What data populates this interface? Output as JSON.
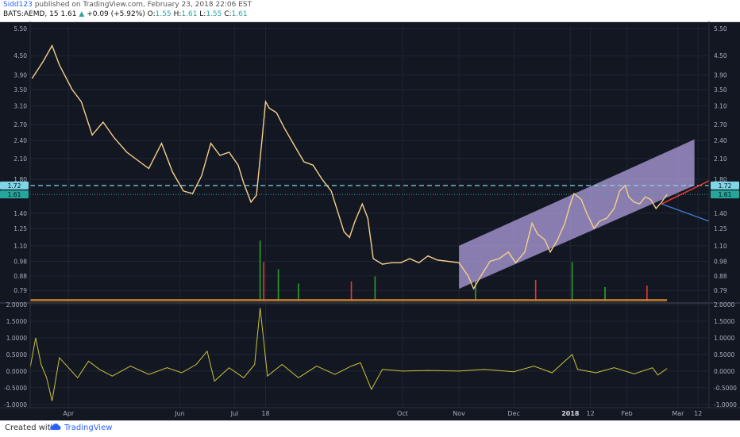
{
  "header": {
    "author": "Sidd123",
    "published_text": "published on TradingView.com, February 23, 2018 22:06 EST",
    "symbol": "BATS:AEMD, 15",
    "last": "1.61",
    "change": "+0.09 (+5.92%)",
    "o_label": "O:",
    "o_value": "1.55",
    "h_label": "H:",
    "h_value": "1.61",
    "l_label": "L:",
    "l_value": "1.55",
    "c_label": "C:",
    "c_value": "1.61"
  },
  "footer": {
    "created_with": "Created with",
    "brand": "TradingView"
  },
  "colors": {
    "background": "#131722",
    "price_line": "#f5d08a",
    "channel_fill": "#b7a5e6",
    "support_line": "#26a69a",
    "resistance_line": "#7ed6e6",
    "trend_red": "#e53935",
    "trend_blue": "#3d7fd8",
    "oscillator": "#c9c43a",
    "volume_up": "#2ca02c",
    "volume_down": "#e53935"
  },
  "icons": {
    "brand_logo": "tradingview-cloud-icon"
  },
  "chart_data": [
    {
      "type": "line",
      "name": "price",
      "y_scale": "log",
      "ylim": [
        0.72,
        5.6
      ],
      "y_ticks": [
        "5.50",
        "4.50",
        "3.90",
        "3.50",
        "3.10",
        "2.70",
        "2.40",
        "2.10",
        "1.80",
        "1.40",
        "1.25",
        "1.10",
        "0.98",
        "0.88",
        "0.79"
      ],
      "x_tick_labels": [
        "Apr",
        "Jun",
        "Jul",
        "18",
        "Oct",
        "Nov",
        "Dec",
        "2018",
        "12",
        "Feb",
        "Mar",
        "12"
      ],
      "x_tick_dates": [
        "2017-04-01",
        "2017-06-01",
        "2017-07-01",
        "2017-07-18",
        "2017-10-01",
        "2017-11-01",
        "2017-12-01",
        "2018-01-01",
        "2018-01-12",
        "2018-02-01",
        "2018-03-01",
        "2018-03-12"
      ],
      "x_range": [
        "2017-03-11",
        "2018-03-18"
      ],
      "points": [
        [
          "2017-03-12",
          3.8
        ],
        [
          "2017-03-18",
          4.3
        ],
        [
          "2017-03-23",
          4.85
        ],
        [
          "2017-03-27",
          4.2
        ],
        [
          "2017-04-03",
          3.5
        ],
        [
          "2017-04-08",
          3.2
        ],
        [
          "2017-04-14",
          2.5
        ],
        [
          "2017-04-20",
          2.75
        ],
        [
          "2017-04-26",
          2.45
        ],
        [
          "2017-05-03",
          2.2
        ],
        [
          "2017-05-10",
          2.05
        ],
        [
          "2017-05-15",
          1.95
        ],
        [
          "2017-05-22",
          2.35
        ],
        [
          "2017-05-28",
          1.9
        ],
        [
          "2017-06-03",
          1.65
        ],
        [
          "2017-06-08",
          1.62
        ],
        [
          "2017-06-13",
          1.85
        ],
        [
          "2017-06-18",
          2.35
        ],
        [
          "2017-06-23",
          2.15
        ],
        [
          "2017-06-28",
          2.2
        ],
        [
          "2017-07-03",
          2.0
        ],
        [
          "2017-07-06",
          1.75
        ],
        [
          "2017-07-10",
          1.52
        ],
        [
          "2017-07-13",
          1.6
        ],
        [
          "2017-07-16",
          2.4
        ],
        [
          "2017-07-18",
          3.2
        ],
        [
          "2017-07-20",
          3.05
        ],
        [
          "2017-07-24",
          2.95
        ],
        [
          "2017-07-28",
          2.65
        ],
        [
          "2017-08-03",
          2.3
        ],
        [
          "2017-08-08",
          2.05
        ],
        [
          "2017-08-13",
          2.0
        ],
        [
          "2017-08-18",
          1.8
        ],
        [
          "2017-08-23",
          1.65
        ],
        [
          "2017-08-26",
          1.45
        ],
        [
          "2017-08-30",
          1.22
        ],
        [
          "2017-09-02",
          1.17
        ],
        [
          "2017-09-05",
          1.32
        ],
        [
          "2017-09-09",
          1.5
        ],
        [
          "2017-09-12",
          1.35
        ],
        [
          "2017-09-15",
          1.0
        ],
        [
          "2017-09-20",
          0.96
        ],
        [
          "2017-09-25",
          0.97
        ],
        [
          "2017-09-30",
          0.97
        ],
        [
          "2017-10-05",
          1.0
        ],
        [
          "2017-10-10",
          0.97
        ],
        [
          "2017-10-15",
          1.02
        ],
        [
          "2017-10-20",
          0.99
        ],
        [
          "2017-10-26",
          0.98
        ],
        [
          "2017-11-01",
          0.97
        ],
        [
          "2017-11-06",
          0.88
        ],
        [
          "2017-11-09",
          0.8
        ],
        [
          "2017-11-13",
          0.88
        ],
        [
          "2017-11-18",
          0.98
        ],
        [
          "2017-11-23",
          1.0
        ],
        [
          "2017-11-28",
          1.05
        ],
        [
          "2017-12-02",
          0.97
        ],
        [
          "2017-12-07",
          1.05
        ],
        [
          "2017-12-11",
          1.3
        ],
        [
          "2017-12-14",
          1.2
        ],
        [
          "2017-12-18",
          1.15
        ],
        [
          "2017-12-21",
          1.05
        ],
        [
          "2017-12-25",
          1.15
        ],
        [
          "2017-12-29",
          1.3
        ],
        [
          "2018-01-01",
          1.5
        ],
        [
          "2018-01-03",
          1.62
        ],
        [
          "2018-01-07",
          1.55
        ],
        [
          "2018-01-10",
          1.4
        ],
        [
          "2018-01-14",
          1.25
        ],
        [
          "2018-01-17",
          1.32
        ],
        [
          "2018-01-21",
          1.35
        ],
        [
          "2018-01-25",
          1.45
        ],
        [
          "2018-01-28",
          1.65
        ],
        [
          "2018-01-31",
          1.72
        ],
        [
          "2018-02-02",
          1.58
        ],
        [
          "2018-02-05",
          1.52
        ],
        [
          "2018-02-08",
          1.5
        ],
        [
          "2018-02-11",
          1.58
        ],
        [
          "2018-02-14",
          1.55
        ],
        [
          "2018-02-17",
          1.45
        ],
        [
          "2018-02-20",
          1.52
        ],
        [
          "2018-02-23",
          1.61
        ]
      ],
      "horizontal_lines": [
        {
          "label": "1.72",
          "value": 1.72,
          "style": "dashed"
        },
        {
          "label": "1.61",
          "value": 1.61,
          "style": "dotted"
        }
      ],
      "annotations": {
        "channel": [
          [
            "2017-11-01",
            1.1
          ],
          [
            "2018-03-10",
            2.42
          ],
          [
            "2018-03-10",
            1.72
          ],
          [
            "2017-11-01",
            0.8
          ]
        ],
        "red_trendline": [
          [
            "2018-02-20",
            1.5
          ],
          [
            "2018-03-18",
            1.78
          ]
        ],
        "blue_trendline": [
          [
            "2018-02-20",
            1.5
          ],
          [
            "2018-03-18",
            1.32
          ]
        ]
      },
      "volume": [
        [
          "2017-07-15",
          0.85
        ],
        [
          "2017-07-17",
          0.55
        ],
        [
          "2017-07-25",
          0.45
        ],
        [
          "2017-08-05",
          0.25
        ],
        [
          "2017-09-03",
          0.28
        ],
        [
          "2017-09-16",
          0.35
        ],
        [
          "2017-11-10",
          0.3
        ],
        [
          "2017-12-13",
          0.3
        ],
        [
          "2018-01-02",
          0.55
        ],
        [
          "2018-01-20",
          0.2
        ],
        [
          "2018-02-12",
          0.22
        ]
      ]
    },
    {
      "type": "line",
      "name": "oscillator",
      "ylim": [
        -1.1,
        2.05
      ],
      "y_ticks": [
        "2.0000",
        "1.5000",
        "1.0000",
        "0.5000",
        "0.0000",
        "-0.5000",
        "-1.0000"
      ],
      "points": [
        [
          "2017-03-11",
          0.1
        ],
        [
          "2017-03-14",
          1.0
        ],
        [
          "2017-03-17",
          0.2
        ],
        [
          "2017-03-20",
          -0.2
        ],
        [
          "2017-03-23",
          -0.9
        ],
        [
          "2017-03-27",
          0.4
        ],
        [
          "2017-04-01",
          0.1
        ],
        [
          "2017-04-06",
          -0.2
        ],
        [
          "2017-04-12",
          0.3
        ],
        [
          "2017-04-18",
          0.05
        ],
        [
          "2017-04-25",
          -0.15
        ],
        [
          "2017-05-05",
          0.15
        ],
        [
          "2017-05-15",
          -0.1
        ],
        [
          "2017-05-25",
          0.1
        ],
        [
          "2017-06-02",
          -0.05
        ],
        [
          "2017-06-10",
          0.2
        ],
        [
          "2017-06-16",
          0.6
        ],
        [
          "2017-06-20",
          -0.3
        ],
        [
          "2017-06-28",
          0.1
        ],
        [
          "2017-07-06",
          -0.2
        ],
        [
          "2017-07-12",
          0.2
        ],
        [
          "2017-07-15",
          1.9
        ],
        [
          "2017-07-17",
          0.9
        ],
        [
          "2017-07-19",
          -0.15
        ],
        [
          "2017-07-27",
          0.2
        ],
        [
          "2017-08-05",
          -0.2
        ],
        [
          "2017-08-15",
          0.15
        ],
        [
          "2017-08-25",
          -0.1
        ],
        [
          "2017-09-03",
          0.15
        ],
        [
          "2017-09-08",
          0.25
        ],
        [
          "2017-09-14",
          -0.55
        ],
        [
          "2017-09-20",
          0.05
        ],
        [
          "2017-10-01",
          0.0
        ],
        [
          "2017-10-15",
          0.02
        ],
        [
          "2017-11-01",
          0.0
        ],
        [
          "2017-11-15",
          0.05
        ],
        [
          "2017-12-01",
          -0.02
        ],
        [
          "2017-12-12",
          0.15
        ],
        [
          "2017-12-22",
          -0.05
        ],
        [
          "2018-01-02",
          0.5
        ],
        [
          "2018-01-05",
          0.05
        ],
        [
          "2018-01-15",
          -0.05
        ],
        [
          "2018-01-25",
          0.1
        ],
        [
          "2018-02-05",
          -0.08
        ],
        [
          "2018-02-15",
          0.1
        ],
        [
          "2018-02-18",
          -0.12
        ],
        [
          "2018-02-23",
          0.08
        ]
      ]
    }
  ]
}
